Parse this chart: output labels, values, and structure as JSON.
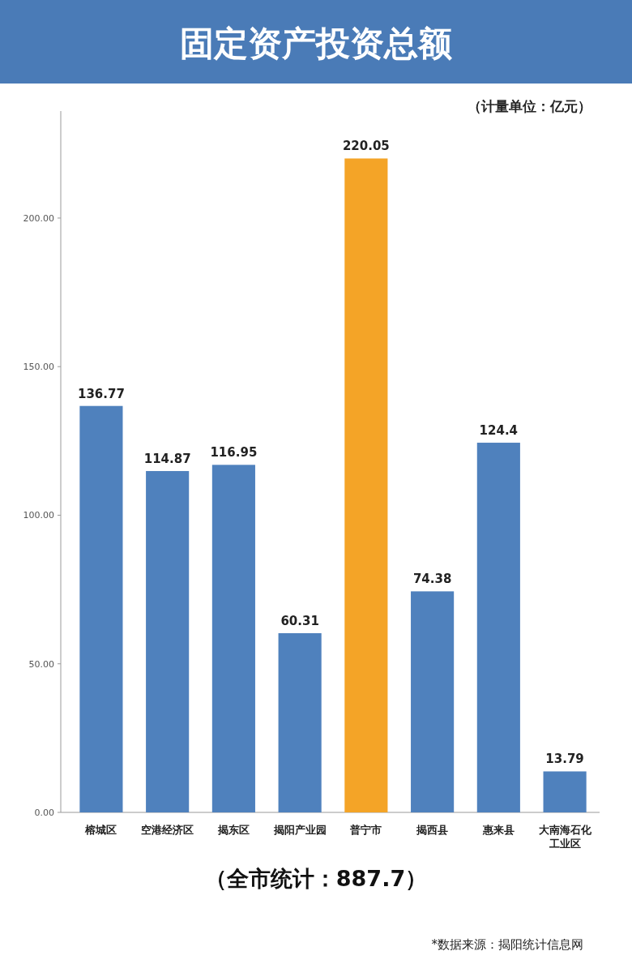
{
  "chart_data": {
    "type": "bar",
    "title": "固定资产投资总额",
    "subtitle": "（计量单位：亿元）",
    "categories": [
      "榕城区",
      "空港经济区",
      "揭东区",
      "揭阳产业园",
      "普宁市",
      "揭西县",
      "惠来县",
      "大南海石化工业区"
    ],
    "values": [
      136.77,
      114.87,
      116.95,
      60.31,
      220.05,
      74.38,
      124.4,
      13.79
    ],
    "colors": [
      "#4f81bd",
      "#4f81bd",
      "#4f81bd",
      "#4f81bd",
      "#f4a427",
      "#4f81bd",
      "#4f81bd",
      "#4f81bd"
    ],
    "ylim": [
      0,
      236
    ],
    "yticks": [
      {
        "value": 0,
        "label": "0.00"
      },
      {
        "value": 50,
        "label": "50.00"
      },
      {
        "value": 100,
        "label": "100.00"
      },
      {
        "value": 150,
        "label": "150.00"
      },
      {
        "value": 200,
        "label": "200.00"
      }
    ],
    "data_labels": true,
    "grid": false,
    "annotations": [
      "（全市统计：887.7）",
      "*数据来源：揭阳统计信息网"
    ]
  }
}
